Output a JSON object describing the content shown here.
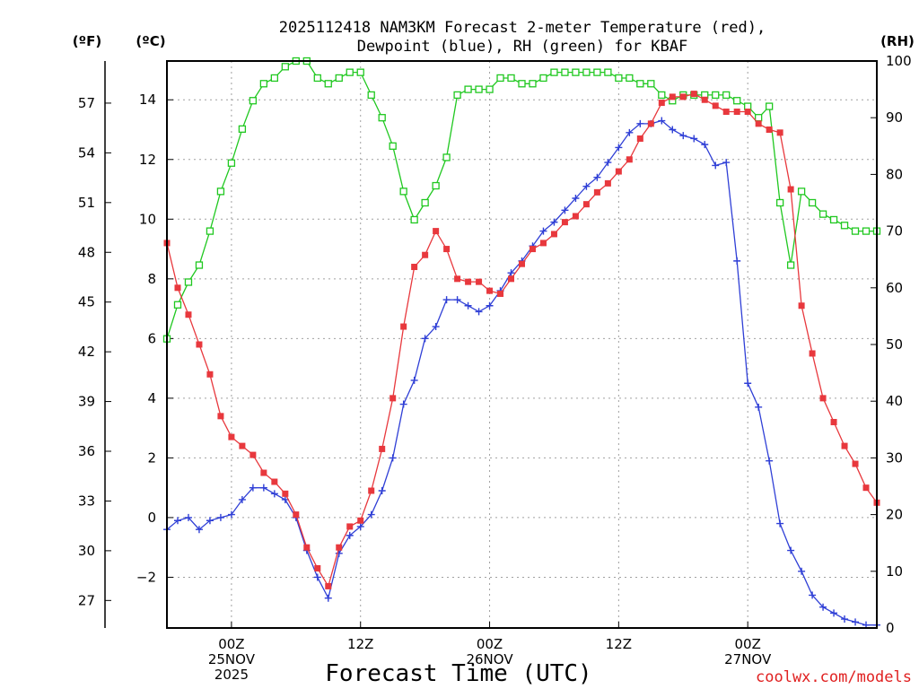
{
  "chart_data": {
    "type": "line",
    "title_line1": "2025112418 NAM3KM Forecast 2-meter Temperature (red),",
    "title_line2": "Dewpoint (blue), RH (green) for KBAF",
    "xlabel": "Forecast Time (UTC)",
    "credit": "coolwx.com/models",
    "units": {
      "f": "(ºF)",
      "c": "(ºC)",
      "rh": "(RH)"
    },
    "x_range_hours": [
      -6,
      60
    ],
    "c_range": [
      -3.7,
      15.3
    ],
    "rh_range": [
      0,
      100
    ],
    "c_ticks": [
      -2,
      0,
      2,
      4,
      6,
      8,
      10,
      12,
      14
    ],
    "f_ticks": [
      27,
      30,
      33,
      36,
      39,
      42,
      45,
      48,
      51,
      54,
      57
    ],
    "rh_ticks": [
      0,
      10,
      20,
      30,
      40,
      50,
      60,
      70,
      80,
      90,
      100
    ],
    "x_ticks": [
      {
        "hour": 0,
        "lines": [
          "00Z",
          "25NOV",
          "2025"
        ]
      },
      {
        "hour": 12,
        "lines": [
          "12Z"
        ]
      },
      {
        "hour": 24,
        "lines": [
          "00Z",
          "26NOV"
        ]
      },
      {
        "hour": 36,
        "lines": [
          "12Z"
        ]
      },
      {
        "hour": 48,
        "lines": [
          "00Z",
          "27NOV"
        ]
      }
    ],
    "series": [
      {
        "name": "Temperature",
        "unit": "C",
        "color": "#e8383d",
        "marker": "filled-square",
        "x": [
          -6,
          -5,
          -4,
          -3,
          -2,
          -1,
          0,
          1,
          2,
          3,
          4,
          5,
          6,
          7,
          8,
          9,
          10,
          11,
          12,
          13,
          14,
          15,
          16,
          17,
          18,
          19,
          20,
          21,
          22,
          23,
          24,
          25,
          26,
          27,
          28,
          29,
          30,
          31,
          32,
          33,
          34,
          35,
          36,
          37,
          38,
          39,
          40,
          41,
          42,
          43,
          44,
          45,
          46,
          47,
          48,
          49,
          50,
          51,
          52,
          53,
          54,
          55,
          56,
          57,
          58,
          59,
          60
        ],
        "values": [
          9.2,
          7.7,
          6.8,
          5.8,
          4.8,
          3.4,
          2.7,
          2.4,
          2.1,
          1.5,
          1.2,
          0.8,
          0.1,
          -1.0,
          -1.7,
          -2.3,
          -1.0,
          -0.3,
          -0.1,
          0.9,
          2.3,
          4.0,
          6.4,
          8.4,
          8.8,
          9.6,
          9.0,
          8.0,
          7.9,
          7.9,
          7.6,
          7.5,
          8.0,
          8.5,
          9.0,
          9.2,
          9.5,
          9.9,
          10.1,
          10.5,
          10.9,
          11.2,
          11.6,
          12.0,
          12.7,
          13.2,
          13.9,
          14.1,
          14.1,
          14.2,
          14.0,
          13.8,
          13.6,
          13.6,
          13.6,
          13.2,
          13.0,
          12.9,
          11.0,
          7.1,
          5.5,
          4.0,
          3.2,
          2.4,
          1.8,
          1.0,
          0.5
        ]
      },
      {
        "name": "Dewpoint",
        "unit": "C",
        "color": "#2f3fd6",
        "marker": "plus",
        "x": [
          -6,
          -5,
          -4,
          -3,
          -2,
          -1,
          0,
          1,
          2,
          3,
          4,
          5,
          6,
          7,
          8,
          9,
          10,
          11,
          12,
          13,
          14,
          15,
          16,
          17,
          18,
          19,
          20,
          21,
          22,
          23,
          24,
          25,
          26,
          27,
          28,
          29,
          30,
          31,
          32,
          33,
          34,
          35,
          36,
          37,
          38,
          39,
          40,
          41,
          42,
          43,
          44,
          45,
          46,
          47,
          48,
          49,
          50,
          51,
          52,
          53,
          54,
          55,
          56,
          57,
          58,
          59,
          60
        ],
        "values": [
          -0.4,
          -0.1,
          0.0,
          -0.4,
          -0.1,
          0.0,
          0.1,
          0.6,
          1.0,
          1.0,
          0.8,
          0.6,
          0.0,
          -1.1,
          -2.0,
          -2.7,
          -1.2,
          -0.6,
          -0.3,
          0.1,
          0.9,
          2.0,
          3.8,
          4.6,
          6.0,
          6.4,
          7.3,
          7.3,
          7.1,
          6.9,
          7.1,
          7.6,
          8.2,
          8.6,
          9.1,
          9.6,
          9.9,
          10.3,
          10.7,
          11.1,
          11.4,
          11.9,
          12.4,
          12.9,
          13.2,
          13.2,
          13.3,
          13.0,
          12.8,
          12.7,
          12.5,
          11.8,
          11.9,
          8.6,
          4.5,
          3.7,
          1.9,
          -0.2,
          -1.1,
          -1.8,
          -2.6,
          -3.0,
          -3.2,
          -3.4,
          -3.5,
          -3.6,
          -3.6
        ]
      },
      {
        "name": "RH",
        "unit": "%",
        "color": "#20c820",
        "marker": "open-square",
        "x": [
          -6,
          -5,
          -4,
          -3,
          -2,
          -1,
          0,
          1,
          2,
          3,
          4,
          5,
          6,
          7,
          8,
          9,
          10,
          11,
          12,
          13,
          14,
          15,
          16,
          17,
          18,
          19,
          20,
          21,
          22,
          23,
          24,
          25,
          26,
          27,
          28,
          29,
          30,
          31,
          32,
          33,
          34,
          35,
          36,
          37,
          38,
          39,
          40,
          41,
          42,
          43,
          44,
          45,
          46,
          47,
          48,
          49,
          50,
          51,
          52,
          53,
          54,
          55,
          56,
          57,
          58,
          59,
          60
        ],
        "values": [
          51,
          57,
          61,
          64,
          70,
          77,
          82,
          88,
          93,
          96,
          97,
          99,
          100,
          100,
          97,
          96,
          97,
          98,
          98,
          94,
          90,
          85,
          77,
          72,
          75,
          78,
          83,
          94,
          95,
          95,
          95,
          97,
          97,
          96,
          96,
          97,
          98,
          98,
          98,
          98,
          98,
          98,
          97,
          97,
          96,
          96,
          94,
          93,
          94,
          94,
          94,
          94,
          94,
          93,
          92,
          90,
          92,
          75,
          64,
          77,
          75,
          73,
          72,
          71,
          70,
          70,
          70
        ]
      }
    ]
  }
}
